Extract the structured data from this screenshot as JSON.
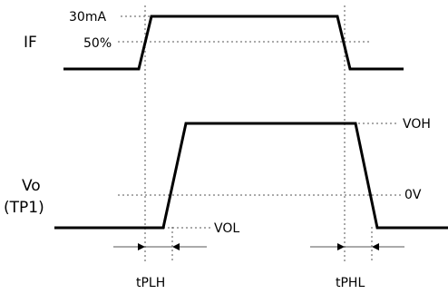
{
  "labels": {
    "if_signal": "IF",
    "if_max": "30mA",
    "if_half": "50%",
    "vo_signal": "Vo",
    "vo_probe": "(TP1)",
    "voh": "VOH",
    "zero_v": "0V",
    "vol": "VOL",
    "tplh": "tPLH",
    "tphl": "tPHL"
  }
}
